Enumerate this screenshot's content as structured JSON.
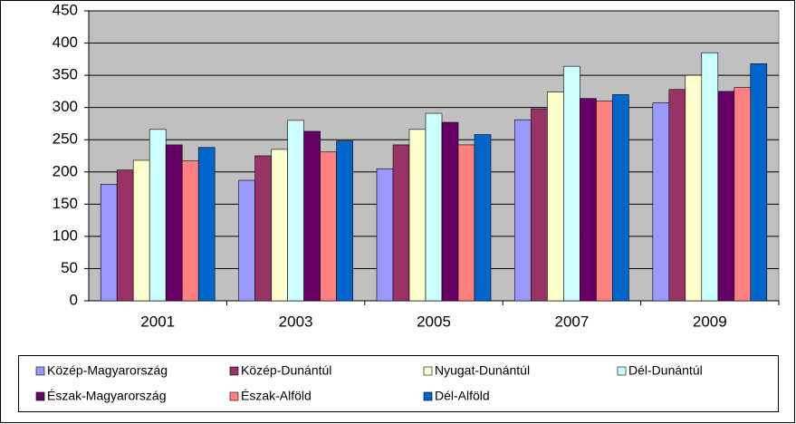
{
  "chart_data": {
    "type": "bar",
    "categories": [
      "2001",
      "2003",
      "2005",
      "2007",
      "2009"
    ],
    "series": [
      {
        "name": "Közép-Magyarország",
        "color": "#9999ff",
        "values": [
          181,
          187,
          205,
          281,
          307
        ]
      },
      {
        "name": "Közép-Dunántúl",
        "color": "#993366",
        "values": [
          203,
          225,
          242,
          298,
          328
        ]
      },
      {
        "name": "Nyugat-Dunántúl",
        "color": "#ffffcc",
        "values": [
          218,
          235,
          266,
          324,
          350
        ]
      },
      {
        "name": "Dél-Dunántúl",
        "color": "#ccffff",
        "values": [
          266,
          280,
          291,
          364,
          385
        ]
      },
      {
        "name": "Észak-Magyarország",
        "color": "#660066",
        "values": [
          242,
          263,
          277,
          314,
          325
        ]
      },
      {
        "name": "Észak-Alföld",
        "color": "#ff8080",
        "values": [
          217,
          231,
          242,
          310,
          331
        ]
      },
      {
        "name": "Dél-Alföld",
        "color": "#0066cc",
        "values": [
          238,
          248,
          258,
          320,
          368
        ]
      }
    ],
    "ylim": [
      0,
      450
    ],
    "yticks": [
      0,
      50,
      100,
      150,
      200,
      250,
      300,
      350,
      400,
      450
    ],
    "grid": true
  }
}
